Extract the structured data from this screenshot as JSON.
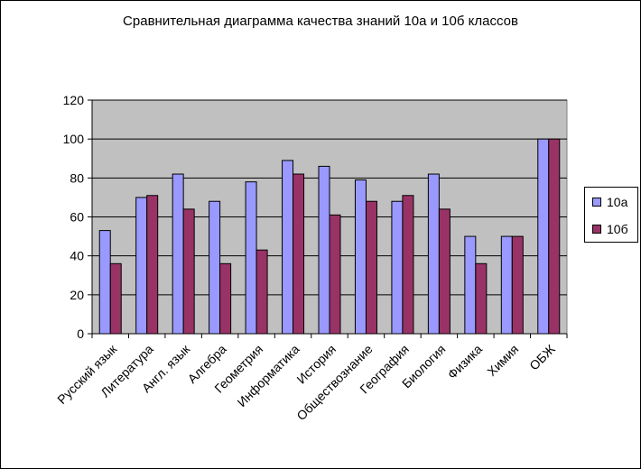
{
  "chart_data": {
    "type": "bar",
    "title": "Сравнительная диаграмма качества знаний 10а и 10б классов",
    "xlabel": "",
    "ylabel": "",
    "ylim": [
      0,
      120
    ],
    "yticks": [
      "0",
      "20",
      "40",
      "60",
      "80",
      "100",
      "120"
    ],
    "grid": true,
    "legend_position": "right",
    "categories": [
      "Русский язык",
      "Литература",
      "Англ. язык",
      "Алгебра",
      "Геометрия",
      "Информатика",
      "История",
      "Обществознание",
      "География",
      "Биология",
      "Физика",
      "Химия",
      "ОБЖ"
    ],
    "series": [
      {
        "name": "10а",
        "color": "#9999ff",
        "values": [
          53,
          70,
          82,
          68,
          78,
          89,
          86,
          79,
          68,
          82,
          50,
          50,
          100
        ]
      },
      {
        "name": "10б",
        "color": "#993366",
        "values": [
          36,
          71,
          64,
          36,
          43,
          82,
          61,
          68,
          71,
          64,
          36,
          50,
          100
        ]
      }
    ],
    "plot_background": "#c0c0c0"
  }
}
